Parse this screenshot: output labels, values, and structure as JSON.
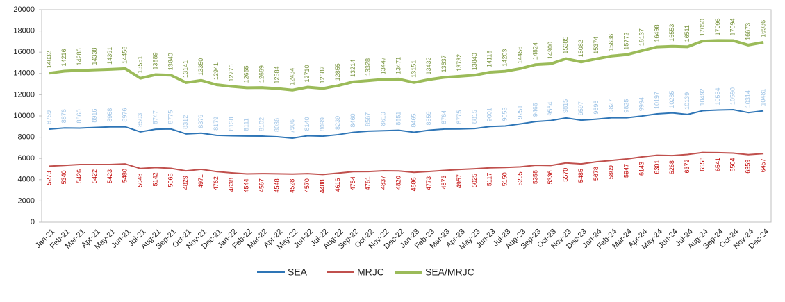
{
  "chart_data": {
    "type": "line",
    "categories": [
      "Jan-21",
      "Feb-21",
      "Mar-21",
      "Apr-21",
      "May-21",
      "Jun-21",
      "Jul-21",
      "Aug-21",
      "Sep-21",
      "Oct-21",
      "Nov-21",
      "Dec-21",
      "Jan-22",
      "Feb-22",
      "Mar-22",
      "Apr-22",
      "May-22",
      "Jun-22",
      "Jul-22",
      "Aug-22",
      "Sep-22",
      "Oct-22",
      "Nov-22",
      "Dec-22",
      "Jan-23",
      "Feb-23",
      "Mar-23",
      "Apr-23",
      "May-23",
      "Jun-23",
      "Jul-23",
      "Aug-23",
      "Sep-23",
      "Oct-23",
      "Nov-23",
      "Dec-23",
      "Jan-24",
      "Feb-24",
      "Mar-24",
      "Apr-24",
      "May-24",
      "Jun-24",
      "Jul-24",
      "Aug-24",
      "Sep-24",
      "Oct-24",
      "Nov-24",
      "Dec-24"
    ],
    "series": [
      {
        "name": "SEA",
        "color": "#2e75b6",
        "label_color": "#9dc3e6",
        "label_position": "above",
        "values": [
          8759,
          8876,
          8860,
          8916,
          8968,
          8976,
          8503,
          8747,
          8775,
          8312,
          8379,
          8179,
          8138,
          8111,
          8102,
          8036,
          7906,
          8140,
          8099,
          8239,
          8460,
          8567,
          8610,
          8651,
          8465,
          8659,
          8764,
          8775,
          8815,
          9001,
          9053,
          9251,
          9466,
          9564,
          9815,
          9597,
          9696,
          9827,
          9825,
          9994,
          10197,
          10285,
          10139,
          10492,
          10554,
          10590,
          10314,
          10481
        ]
      },
      {
        "name": "MRJC",
        "color": "#c0504d",
        "label_color": "#c00000",
        "label_position": "below",
        "values": [
          5273,
          5340,
          5426,
          5422,
          5423,
          5480,
          5048,
          5142,
          5065,
          4829,
          4971,
          4762,
          4638,
          4544,
          4567,
          4548,
          4528,
          4570,
          4488,
          4616,
          4754,
          4761,
          4837,
          4820,
          4686,
          4773,
          4873,
          4957,
          5025,
          5117,
          5150,
          5205,
          5358,
          5336,
          5570,
          5485,
          5678,
          5809,
          5947,
          6143,
          6301,
          6268,
          6372,
          6558,
          6541,
          6504,
          6359,
          6457
        ]
      },
      {
        "name": "SEA/MRJC",
        "color": "#9bbb59",
        "label_color": "#77933c",
        "label_position": "above",
        "values": [
          14032,
          14216,
          14286,
          14338,
          14391,
          14456,
          13551,
          13889,
          13840,
          13141,
          13350,
          12941,
          12776,
          12655,
          12669,
          12584,
          12434,
          12710,
          12587,
          12855,
          13214,
          13328,
          13447,
          13471,
          13151,
          13432,
          13637,
          13732,
          13840,
          14118,
          14203,
          14456,
          14824,
          14900,
          15385,
          15082,
          15374,
          15636,
          15772,
          16137,
          16498,
          16553,
          16511,
          17050,
          17096,
          17094,
          16673,
          16936
        ]
      }
    ],
    "ylim": [
      0,
      20000
    ],
    "yticks": [
      0,
      2000,
      4000,
      6000,
      8000,
      10000,
      12000,
      14000,
      16000,
      18000,
      20000
    ],
    "grid": false,
    "legend": "bottom"
  }
}
